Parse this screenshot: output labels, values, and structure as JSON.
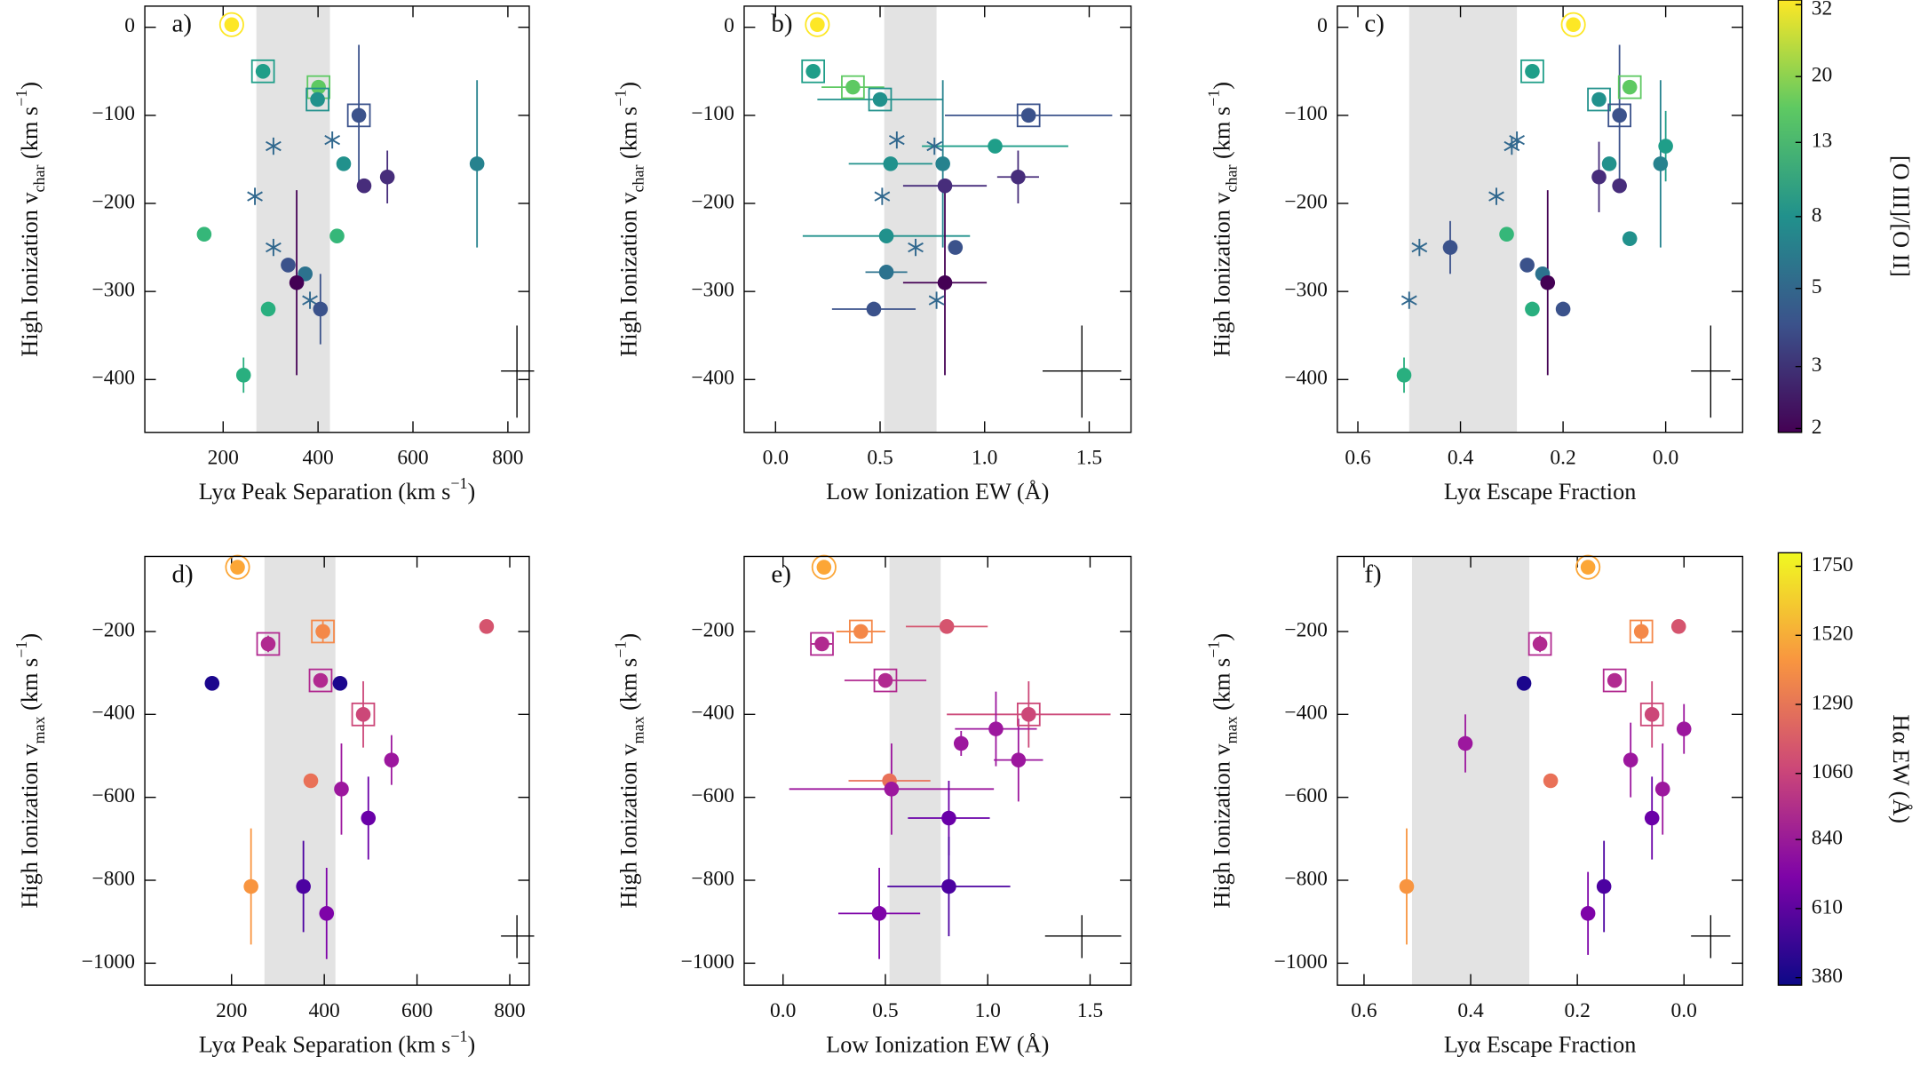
{
  "chart_data": [
    {
      "type": "scatter",
      "label": "a)",
      "xlabel": [
        {
          "text": "Lyα Peak Separation (km s"
        },
        {
          "text": "−1",
          "shift": "super"
        },
        {
          "text": ")"
        }
      ],
      "ylabel": [
        {
          "text": "High Ionization v"
        },
        {
          "text": "char",
          "shift": "sub"
        },
        {
          "text": " (km s"
        },
        {
          "text": "−1",
          "shift": "super"
        },
        {
          "text": ")"
        }
      ],
      "xlim": [
        35,
        845
      ],
      "ylim": [
        -460,
        24
      ],
      "xticks": [
        200,
        400,
        600,
        800
      ],
      "yticks": [
        0,
        {
          "value": -100,
          "label": "−100"
        },
        {
          "value": -200,
          "label": "−200"
        },
        {
          "value": -300,
          "label": "−300"
        },
        {
          "value": -400,
          "label": "−400"
        }
      ],
      "band": [
        270,
        425
      ],
      "x": [
        218,
        284,
        401,
        399,
        486,
        430,
        306,
        267,
        306,
        383,
        454,
        735,
        497,
        546,
        160,
        440,
        337,
        373,
        355,
        405,
        295,
        243
      ],
      "values": [
        3,
        -50,
        -68,
        -82,
        -100,
        -128,
        -135,
        -192,
        -250,
        -310,
        -155,
        -155,
        -180,
        -170,
        -235,
        -237,
        -270,
        -280,
        -290,
        -320,
        -320,
        -395
      ],
      "colors": [
        "#fde725",
        "#1f9e89",
        "#5ec962",
        "#21918c",
        "#3b528b",
        "#31688e",
        "#31688e",
        "#31688e",
        "#31688e",
        "#31688e",
        "#21918c",
        "#26828e",
        "#472d7b",
        "#472d7b",
        "#35b779",
        "#35b779",
        "#3b528b",
        "#2c728e",
        "#440154",
        "#3b528b",
        "#29af7f",
        "#29af7f"
      ],
      "markers": [
        "ring",
        "square",
        "square",
        "square",
        "square",
        "asterisk",
        "asterisk",
        "asterisk",
        "asterisk",
        "asterisk",
        "circle",
        "circle",
        "circle",
        "circle",
        "circle",
        "circle",
        "circle",
        "circle",
        "circle",
        "circle",
        "circle",
        "circle"
      ],
      "xerr": [
        null,
        null,
        null,
        null,
        null,
        null,
        null,
        null,
        null,
        null,
        null,
        null,
        null,
        null,
        null,
        null,
        null,
        null,
        null,
        null,
        null,
        null
      ],
      "yerr": [
        null,
        null,
        null,
        null,
        80,
        null,
        null,
        null,
        null,
        null,
        null,
        95,
        null,
        30,
        null,
        null,
        null,
        null,
        105,
        40,
        null,
        20
      ]
    },
    {
      "type": "scatter",
      "label": "b)",
      "xlabel": [
        {
          "text": "Low Ionization EW (Å)"
        }
      ],
      "ylabel": [
        {
          "text": "High Ionization v"
        },
        {
          "text": "char",
          "shift": "sub"
        },
        {
          "text": " (km s"
        },
        {
          "text": "−1",
          "shift": "super"
        },
        {
          "text": ")"
        }
      ],
      "xlim": [
        -0.15,
        1.7
      ],
      "ylim": [
        -460,
        24
      ],
      "xticks": [
        {
          "value": 0,
          "label": "0.0"
        },
        0.5,
        {
          "value": 1,
          "label": "1.0"
        },
        1.5
      ],
      "yticks": [
        0,
        {
          "value": -100,
          "label": "−100"
        },
        {
          "value": -200,
          "label": "−200"
        },
        {
          "value": -300,
          "label": "−300"
        },
        {
          "value": -400,
          "label": "−400"
        }
      ],
      "band": [
        0.52,
        0.77
      ],
      "x": [
        0.2,
        0.18,
        0.37,
        0.5,
        1.21,
        0.58,
        0.76,
        0.51,
        0.67,
        0.77,
        0.55,
        0.8,
        0.81,
        1.16,
        1.05,
        0.53,
        0.53,
        0.86,
        0.81,
        0.47
      ],
      "values": [
        3,
        -50,
        -68,
        -82,
        -100,
        -128,
        -135,
        -192,
        -250,
        -310,
        -155,
        -155,
        -180,
        -170,
        -135,
        -237,
        -278,
        -250,
        -290,
        -320
      ],
      "colors": [
        "#fde725",
        "#1f9e89",
        "#5ec962",
        "#21918c",
        "#3b528b",
        "#31688e",
        "#31688e",
        "#31688e",
        "#31688e",
        "#31688e",
        "#21918c",
        "#26828e",
        "#472d7b",
        "#472d7b",
        "#1f9e89",
        "#21918c",
        "#2c728e",
        "#3b528b",
        "#440154",
        "#3b528b"
      ],
      "markers": [
        "ring",
        "square",
        "square",
        "square",
        "square",
        "asterisk",
        "asterisk",
        "asterisk",
        "asterisk",
        "asterisk",
        "circle",
        "circle",
        "circle",
        "circle",
        "circle",
        "circle",
        "circle",
        "circle",
        "circle",
        "circle"
      ],
      "xerr": [
        null,
        null,
        0.15,
        0.3,
        0.4,
        null,
        null,
        null,
        null,
        null,
        0.2,
        null,
        0.2,
        0.1,
        0.35,
        0.4,
        0.1,
        null,
        0.2,
        0.2
      ],
      "yerr": [
        null,
        null,
        null,
        null,
        null,
        null,
        null,
        null,
        null,
        null,
        null,
        95,
        null,
        30,
        null,
        null,
        null,
        null,
        105,
        null
      ]
    },
    {
      "type": "scatter",
      "label": "c)",
      "xlabel": [
        {
          "text": "Lyα Escape Fraction"
        }
      ],
      "ylabel": [
        {
          "text": "High Ionization v"
        },
        {
          "text": "char",
          "shift": "sub"
        },
        {
          "text": " (km s"
        },
        {
          "text": "−1",
          "shift": "super"
        },
        {
          "text": ")"
        }
      ],
      "xlim": [
        0.64,
        -0.15
      ],
      "ylim": [
        -460,
        24
      ],
      "xticks": [
        0.6,
        0.4,
        0.2,
        {
          "value": 0,
          "label": "0.0"
        }
      ],
      "yticks": [
        0,
        {
          "value": -100,
          "label": "−100"
        },
        {
          "value": -200,
          "label": "−200"
        },
        {
          "value": -300,
          "label": "−300"
        },
        {
          "value": -400,
          "label": "−400"
        }
      ],
      "band": [
        0.5,
        0.29
      ],
      "x": [
        0.18,
        0.26,
        0.07,
        0.13,
        0.09,
        0.29,
        0.3,
        0.33,
        0.48,
        0.5,
        0.11,
        0.01,
        0.0,
        0.31,
        0.07,
        0.24,
        0.13,
        0.09,
        0.42,
        0.27,
        0.23,
        0.2,
        0.26,
        0.51
      ],
      "values": [
        3,
        -50,
        -68,
        -82,
        -100,
        -128,
        -135,
        -192,
        -250,
        -310,
        -155,
        -155,
        -135,
        -235,
        -240,
        -280,
        -170,
        -180,
        -250,
        -270,
        -290,
        -320,
        -320,
        -395
      ],
      "colors": [
        "#fde725",
        "#1f9e89",
        "#5ec962",
        "#21918c",
        "#3b528b",
        "#31688e",
        "#31688e",
        "#31688e",
        "#31688e",
        "#31688e",
        "#21918c",
        "#26828e",
        "#1f9e89",
        "#35b779",
        "#21918c",
        "#2c728e",
        "#472d7b",
        "#472d7b",
        "#3b528b",
        "#3b528b",
        "#440154",
        "#3b528b",
        "#29af7f",
        "#29af7f"
      ],
      "markers": [
        "ring",
        "square",
        "square",
        "square",
        "square",
        "asterisk",
        "asterisk",
        "asterisk",
        "asterisk",
        "asterisk",
        "circle",
        "circle",
        "circle",
        "circle",
        "circle",
        "circle",
        "circle",
        "circle",
        "circle",
        "circle",
        "circle",
        "circle",
        "circle",
        "circle"
      ],
      "xerr": [
        null,
        null,
        null,
        null,
        null,
        null,
        null,
        null,
        null,
        null,
        null,
        null,
        null,
        null,
        null,
        null,
        null,
        null,
        null,
        null,
        null,
        null,
        null,
        null
      ],
      "yerr": [
        null,
        null,
        null,
        null,
        80,
        null,
        null,
        null,
        null,
        null,
        null,
        95,
        40,
        null,
        null,
        null,
        40,
        null,
        30,
        null,
        105,
        null,
        null,
        20
      ]
    },
    {
      "type": "scatter",
      "label": "d)",
      "xlabel": [
        {
          "text": "Lyα Peak Separation (km s"
        },
        {
          "text": "−1",
          "shift": "super"
        },
        {
          "text": ")"
        }
      ],
      "ylabel": [
        {
          "text": "High Ionization v"
        },
        {
          "text": "max",
          "shift": "sub"
        },
        {
          "text": " (km s"
        },
        {
          "text": "−1",
          "shift": "super"
        },
        {
          "text": ")"
        }
      ],
      "xlim": [
        13,
        842
      ],
      "ylim": [
        -1053,
        -19
      ],
      "xticks": [
        200,
        400,
        600,
        800
      ],
      "yticks": [
        {
          "value": -200,
          "label": "−200"
        },
        {
          "value": -400,
          "label": "−400"
        },
        {
          "value": -600,
          "label": "−600"
        },
        {
          "value": -800,
          "label": "−800"
        },
        {
          "value": -1000,
          "label": "−1000"
        }
      ],
      "band": [
        271,
        424
      ],
      "x": [
        213,
        279,
        397,
        392,
        158,
        434,
        750,
        484,
        371,
        437,
        545,
        495,
        242,
        355,
        405
      ],
      "values": [
        -45,
        -230,
        -200,
        -318,
        -325,
        -325,
        -188,
        -400,
        -560,
        -580,
        -510,
        -650,
        -815,
        -815,
        -880
      ],
      "colors": [
        "#fca636",
        "#b12a90",
        "#f48849",
        "#b12a90",
        "#1b068d",
        "#1b068d",
        "#d5546e",
        "#cc4778",
        "#e97158",
        "#9c179e",
        "#9c179e",
        "#6a00a8",
        "#f89540",
        "#4c02a1",
        "#7e03a8"
      ],
      "markers": [
        "ring",
        "square",
        "square",
        "square",
        "circle",
        "circle",
        "circle",
        "square",
        "circle",
        "circle",
        "circle",
        "circle",
        "circle",
        "circle",
        "circle"
      ],
      "xerr": [
        null,
        null,
        null,
        null,
        null,
        null,
        null,
        null,
        null,
        null,
        null,
        null,
        null,
        null,
        null
      ],
      "yerr": [
        null,
        20,
        25,
        null,
        null,
        null,
        null,
        80,
        null,
        110,
        60,
        100,
        140,
        110,
        110
      ]
    },
    {
      "type": "scatter",
      "label": "e)",
      "xlabel": [
        {
          "text": "Low Ionization EW (Å)"
        }
      ],
      "ylabel": [
        {
          "text": "High Ionization v"
        },
        {
          "text": "max",
          "shift": "sub"
        },
        {
          "text": " (km s"
        },
        {
          "text": "−1",
          "shift": "super"
        },
        {
          "text": ")"
        }
      ],
      "xlim": [
        -0.19,
        1.7
      ],
      "ylim": [
        -1053,
        -19
      ],
      "xticks": [
        {
          "value": 0,
          "label": "0.0"
        },
        0.5,
        {
          "value": 1,
          "label": "1.0"
        },
        1.5
      ],
      "yticks": [
        {
          "value": -200,
          "label": "−200"
        },
        {
          "value": -400,
          "label": "−400"
        },
        {
          "value": -600,
          "label": "−600"
        },
        {
          "value": -800,
          "label": "−800"
        },
        {
          "value": -1000,
          "label": "−1000"
        }
      ],
      "band": [
        0.52,
        0.77
      ],
      "x": [
        0.2,
        0.19,
        0.38,
        0.5,
        0.8,
        1.2,
        0.52,
        1.04,
        0.87,
        0.53,
        1.15,
        0.81,
        0.81,
        0.47
      ],
      "values": [
        -45,
        -230,
        -200,
        -318,
        -188,
        -400,
        -560,
        -435,
        -470,
        -580,
        -510,
        -650,
        -815,
        -880
      ],
      "colors": [
        "#fca636",
        "#b12a90",
        "#f48849",
        "#b12a90",
        "#d5546e",
        "#cc4778",
        "#e97158",
        "#9c179e",
        "#9c179e",
        "#9c179e",
        "#9c179e",
        "#6a00a8",
        "#4c02a1",
        "#7e03a8"
      ],
      "markers": [
        "ring",
        "square",
        "square",
        "square",
        "circle",
        "square",
        "circle",
        "circle",
        "circle",
        "circle",
        "circle",
        "circle",
        "circle",
        "circle"
      ],
      "xerr": [
        null,
        0.05,
        0.12,
        0.2,
        0.2,
        0.4,
        0.2,
        0.2,
        null,
        0.5,
        0.12,
        0.2,
        0.3,
        0.2
      ],
      "yerr": [
        null,
        null,
        null,
        null,
        null,
        80,
        null,
        90,
        30,
        110,
        100,
        90,
        120,
        110
      ]
    },
    {
      "type": "scatter",
      "label": "f)",
      "xlabel": [
        {
          "text": "Lyα Escape Fraction"
        }
      ],
      "ylabel": [
        {
          "text": "High Ionization v"
        },
        {
          "text": "max",
          "shift": "sub"
        },
        {
          "text": " (km s"
        },
        {
          "text": "−1",
          "shift": "super"
        },
        {
          "text": ")"
        }
      ],
      "xlim": [
        0.65,
        -0.11
      ],
      "ylim": [
        -1053,
        -19
      ],
      "xticks": [
        0.6,
        0.4,
        0.2,
        {
          "value": 0,
          "label": "0.0"
        }
      ],
      "yticks": [
        {
          "value": -200,
          "label": "−200"
        },
        {
          "value": -400,
          "label": "−400"
        },
        {
          "value": -600,
          "label": "−600"
        },
        {
          "value": -800,
          "label": "−800"
        },
        {
          "value": -1000,
          "label": "−1000"
        }
      ],
      "band": [
        0.51,
        0.29
      ],
      "x": [
        0.18,
        0.27,
        0.08,
        0.13,
        0.01,
        0.06,
        0.25,
        0.0,
        0.41,
        0.04,
        0.1,
        0.06,
        0.15,
        0.18,
        0.52,
        0.3
      ],
      "values": [
        -45,
        -230,
        -200,
        -318,
        -188,
        -400,
        -560,
        -435,
        -470,
        -580,
        -510,
        -650,
        -815,
        -880,
        -815,
        -325
      ],
      "colors": [
        "#fca636",
        "#b12a90",
        "#f48849",
        "#b12a90",
        "#d5546e",
        "#cc4778",
        "#e97158",
        "#9c179e",
        "#9c179e",
        "#9c179e",
        "#9c179e",
        "#6a00a8",
        "#4c02a1",
        "#7e03a8",
        "#f89540",
        "#1b068d"
      ],
      "markers": [
        "ring",
        "square",
        "square",
        "square",
        "circle",
        "square",
        "circle",
        "circle",
        "circle",
        "circle",
        "circle",
        "circle",
        "circle",
        "circle",
        "circle",
        "circle"
      ],
      "xerr": [
        null,
        null,
        null,
        null,
        null,
        null,
        null,
        null,
        null,
        null,
        null,
        null,
        null,
        null,
        null,
        null
      ],
      "yerr": [
        null,
        20,
        25,
        null,
        null,
        80,
        null,
        60,
        70,
        110,
        90,
        100,
        110,
        100,
        140,
        null
      ]
    },
    {
      "type": "colorbar",
      "label": "[O III]/[O II]",
      "log": true,
      "clim": [
        1.95,
        33
      ],
      "cticks": [
        32,
        20,
        13,
        8,
        5,
        3,
        2
      ],
      "colormap": [
        "#440154",
        "#3b528b",
        "#21918c",
        "#5ec962",
        "#fde725"
      ]
    },
    {
      "type": "colorbar",
      "label": "Hα EW (Å)",
      "log": false,
      "clim": [
        355,
        1795
      ],
      "cticks": [
        1750,
        1520,
        1290,
        1060,
        840,
        610,
        380
      ],
      "colormap": [
        "#0d0887",
        "#7e03a8",
        "#cc4778",
        "#f89540",
        "#f0f921"
      ]
    }
  ]
}
